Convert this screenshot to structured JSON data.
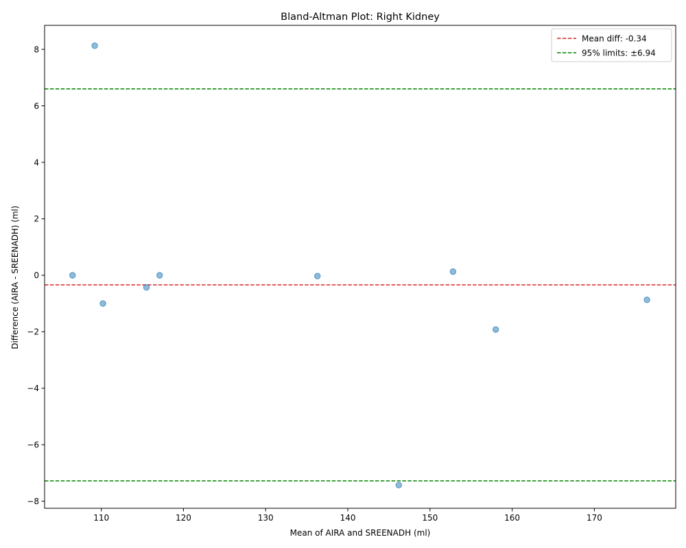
{
  "chart_data": {
    "type": "scatter",
    "title": "Bland-Altman Plot: Right Kidney",
    "xlabel": "Mean of AIRA and SREENADH (ml)",
    "ylabel": "Difference (AIRA - SREENADH) (ml)",
    "xlim": [
      103.1,
      179.9
    ],
    "ylim": [
      -8.25,
      8.85
    ],
    "xticks": [
      110,
      120,
      130,
      140,
      150,
      160,
      170
    ],
    "yticks": [
      -8,
      -6,
      -4,
      -2,
      0,
      2,
      4,
      6,
      8
    ],
    "grid": false,
    "legend_position": "top-right",
    "points": {
      "x": [
        106.5,
        109.2,
        110.2,
        115.5,
        117.1,
        136.3,
        146.2,
        152.8,
        158.0,
        176.4
      ],
      "y": [
        0.0,
        8.13,
        -1.0,
        -0.43,
        0.0,
        -0.03,
        -7.43,
        0.13,
        -1.92,
        -0.87
      ],
      "color": "#1f77b4"
    },
    "reference_lines": [
      {
        "name": "Mean diff: -0.34",
        "y": -0.34,
        "color": "#d62728",
        "style": "dashed"
      },
      {
        "name": "95% limits: ±6.94",
        "y": 6.6,
        "color": "#008000",
        "style": "dashed"
      },
      {
        "name": "",
        "y": -7.28,
        "color": "#008000",
        "style": "dashed"
      }
    ],
    "legend": [
      "Mean diff: -0.34",
      "95% limits: ±6.94"
    ]
  }
}
